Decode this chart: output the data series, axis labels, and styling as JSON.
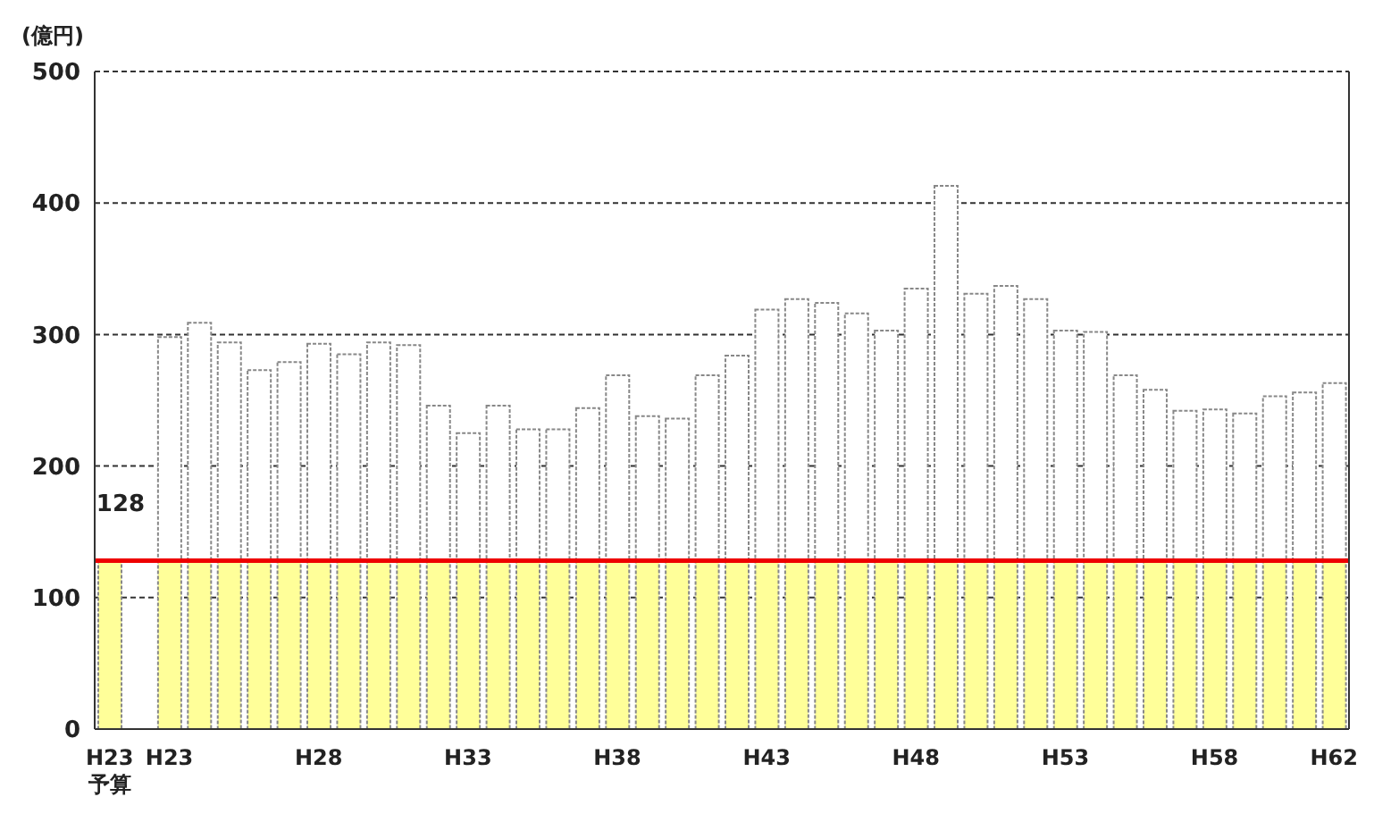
{
  "chart_data": {
    "type": "bar",
    "stacked": true,
    "ylabel": "(億円)",
    "categories": [
      "H23\n予算",
      null,
      "H23",
      null,
      null,
      null,
      null,
      "H28",
      null,
      null,
      null,
      null,
      "H33",
      null,
      null,
      null,
      null,
      "H38",
      null,
      null,
      null,
      null,
      "H43",
      null,
      null,
      null,
      null,
      "H48",
      null,
      null,
      null,
      null,
      "H53",
      null,
      null,
      null,
      null,
      "H58",
      null,
      null,
      null,
      "H62"
    ],
    "series": [
      {
        "color": "#ffff99",
        "values": [
          128,
          null,
          128,
          128,
          128,
          128,
          128,
          128,
          128,
          128,
          128,
          128,
          128,
          128,
          128,
          128,
          128,
          128,
          128,
          128,
          128,
          128,
          128,
          128,
          128,
          128,
          128,
          128,
          128,
          128,
          128,
          128,
          128,
          128,
          128,
          128,
          128,
          128,
          128,
          128,
          128,
          128
        ],
        "value_labels": [
          "128",
          null,
          null,
          null,
          null,
          null,
          null,
          null,
          null,
          null,
          null,
          null,
          null,
          null,
          null,
          null,
          null,
          null,
          null,
          null,
          null,
          null,
          null,
          null,
          null,
          null,
          null,
          null,
          null,
          null,
          null,
          null,
          null,
          null,
          null,
          null,
          null,
          null,
          null,
          null,
          null,
          null
        ]
      },
      {
        "color": "#ffffff",
        "values": [
          null,
          null,
          170,
          181,
          166,
          145,
          151,
          165,
          157,
          166,
          164,
          118,
          97,
          118,
          100,
          100,
          116,
          141,
          110,
          108,
          141,
          156,
          191,
          199,
          196,
          188,
          175,
          207,
          285,
          203,
          209,
          199,
          175,
          174,
          141,
          130,
          114,
          115,
          112,
          125,
          128,
          135
        ]
      }
    ],
    "ylim": [
      0,
      500
    ],
    "yticks": [
      0,
      100,
      200,
      300,
      400,
      500
    ],
    "grid": "y",
    "ref_lines": [
      {
        "axis": "y",
        "value": 128,
        "color": "#ee0000"
      }
    ]
  }
}
